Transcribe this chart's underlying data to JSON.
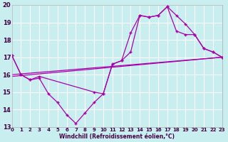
{
  "xlabel": "Windchill (Refroidissement éolien,°C)",
  "background_color": "#c8eef0",
  "grid_color": "#ffffff",
  "line_color": "#aa00aa",
  "text_color": "#440044",
  "xlim": [
    0,
    23
  ],
  "ylim": [
    13,
    20
  ],
  "yticks": [
    13,
    14,
    15,
    16,
    17,
    18,
    19,
    20
  ],
  "xticks": [
    0,
    1,
    2,
    3,
    4,
    5,
    6,
    7,
    8,
    9,
    10,
    11,
    12,
    13,
    14,
    15,
    16,
    17,
    18,
    19,
    20,
    21,
    22,
    23
  ],
  "lines": [
    {
      "x": [
        0,
        1,
        2,
        3,
        4,
        5,
        6,
        7,
        8,
        9,
        10,
        11,
        12,
        13,
        14,
        15,
        16,
        17,
        18,
        19,
        20,
        21,
        22,
        23
      ],
      "y": [
        17.1,
        16.0,
        15.7,
        15.8,
        14.9,
        14.4,
        13.7,
        13.2,
        13.8,
        14.4,
        14.9,
        16.6,
        16.8,
        18.4,
        19.4,
        19.3,
        19.4,
        19.9,
        19.4,
        18.9,
        18.3,
        17.5,
        17.3,
        17.0
      ],
      "has_markers": true
    },
    {
      "x": [
        0,
        1,
        2,
        3,
        9,
        10,
        11,
        12,
        13,
        14,
        15,
        16,
        17,
        18,
        19,
        20,
        21,
        22,
        23
      ],
      "y": [
        17.1,
        16.0,
        15.7,
        15.9,
        15.0,
        14.9,
        16.6,
        16.8,
        17.3,
        19.4,
        19.3,
        19.4,
        19.9,
        18.5,
        18.3,
        18.3,
        17.5,
        17.3,
        17.0
      ],
      "has_markers": true
    },
    {
      "x": [
        0,
        23
      ],
      "y": [
        16.0,
        17.0
      ],
      "has_markers": false
    },
    {
      "x": [
        0,
        23
      ],
      "y": [
        15.9,
        17.0
      ],
      "has_markers": false
    }
  ]
}
